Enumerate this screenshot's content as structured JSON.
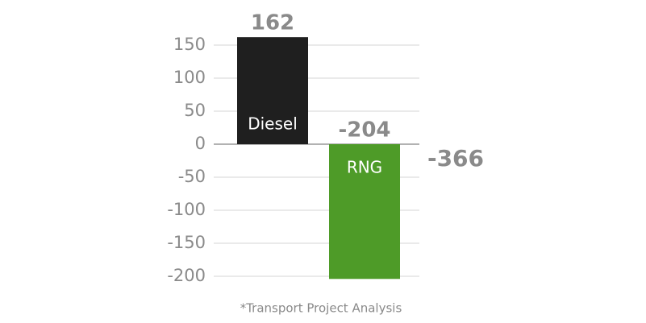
{
  "chart_data": {
    "type": "bar",
    "categories": [
      "Diesel",
      "RNG"
    ],
    "values": [
      162,
      -204
    ],
    "colors": [
      "#1f1f1f",
      "#4e9b28"
    ],
    "ylim": [
      -215,
      175
    ],
    "yticks": [
      150,
      100,
      50,
      0,
      -50,
      -100,
      -150,
      -200
    ],
    "grid": true,
    "annotation": "-366",
    "note": "*Transport Project Analysis"
  }
}
